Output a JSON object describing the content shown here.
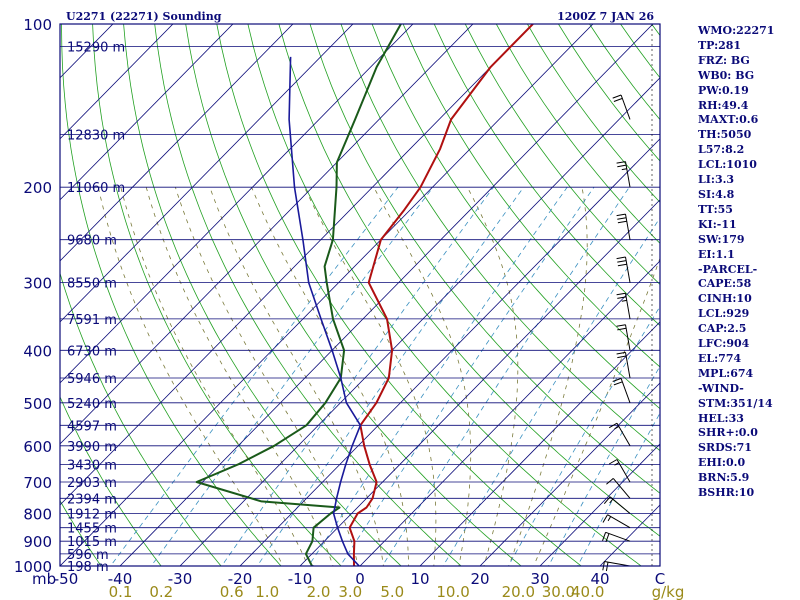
{
  "title_left": "U2271 (22271) Sounding",
  "title_right": "1200Z  7 JAN 26",
  "colors": {
    "frame": "#0a0a78",
    "isobar": "#0a0a78",
    "isotherm": "#0a0a78",
    "dry_adiabat": "#22a022",
    "moist_adiabat": "#7a7a3a",
    "mixing_ratio": "#3a90c0",
    "temperature": "#b01010",
    "dewpoint": "#1a5a1a",
    "parcel": "#1a1a9a",
    "mixing_label": "#9a8a1a"
  },
  "indices": [
    "WMO:22271",
    "TP:281",
    "FRZ: BG",
    "WB0: BG",
    "PW:0.19",
    "RH:49.4",
    "MAXT:0.6",
    "TH:5050",
    "L57:8.2",
    "LCL:1010",
    "LI:3.3",
    "SI:4.8",
    "TT:55",
    "KI:-11",
    "SW:179",
    "EI:1.1",
    "-PARCEL-",
    "CAPE:58",
    "CINH:10",
    "LCL:929",
    "CAP:2.5",
    "LFC:904",
    "EL:774",
    "MPL:674",
    "-WIND-",
    "STM:351/14",
    "HEL:33",
    "SHR+:0.0",
    "SRDS:71",
    "EHI:0.0",
    "BRN:5.9",
    "BSHR:10"
  ],
  "chart_data": {
    "type": "line",
    "diagram": "skew-t log-p",
    "title": "U2271 (22271) Sounding",
    "y_axis": {
      "unit": "mb",
      "scale": "log",
      "range": [
        1000,
        100
      ],
      "tick_labels": [
        "100",
        "200",
        "300",
        "400",
        "500",
        "600",
        "700",
        "800",
        "900",
        "1000"
      ]
    },
    "x_axis": {
      "unit": "C",
      "range": [
        -50,
        50
      ],
      "tick_labels": [
        "-50",
        "-40",
        "-30",
        "-20",
        "-10",
        "0",
        "10",
        "20",
        "30",
        "40",
        "C"
      ]
    },
    "mixing_ratio": {
      "unit": "g/kg",
      "labels": [
        "0.1",
        "0.2",
        "0.6",
        "1.0",
        "2.0",
        "3.0",
        "5.0",
        "10.0",
        "20.0",
        "30.0",
        "40.0"
      ]
    },
    "heights": [
      {
        "p": 110,
        "label": "15290 m"
      },
      {
        "p": 160,
        "label": "12830 m"
      },
      {
        "p": 200,
        "label": "11060 m"
      },
      {
        "p": 250,
        "label": "9680 m"
      },
      {
        "p": 300,
        "label": "8550 m"
      },
      {
        "p": 350,
        "label": "7591 m"
      },
      {
        "p": 400,
        "label": "6730 m"
      },
      {
        "p": 450,
        "label": "5946 m"
      },
      {
        "p": 500,
        "label": "5240 m"
      },
      {
        "p": 550,
        "label": "4597 m"
      },
      {
        "p": 600,
        "label": "3990 m"
      },
      {
        "p": 650,
        "label": "3430 m"
      },
      {
        "p": 700,
        "label": "2903 m"
      },
      {
        "p": 750,
        "label": "2394 m"
      },
      {
        "p": 800,
        "label": "1912 m"
      },
      {
        "p": 850,
        "label": "1455 m"
      },
      {
        "p": 900,
        "label": "1015 m"
      },
      {
        "p": 950,
        "label": "596 m"
      },
      {
        "p": 1000,
        "label": "198 m"
      }
    ],
    "series": [
      {
        "key": "temperature",
        "points": [
          [
            1010,
            0.6
          ],
          [
            1000,
            -1
          ],
          [
            950,
            -3
          ],
          [
            900,
            -5
          ],
          [
            850,
            -8
          ],
          [
            800,
            -9
          ],
          [
            780,
            -8.5
          ],
          [
            750,
            -9
          ],
          [
            700,
            -11
          ],
          [
            650,
            -15
          ],
          [
            600,
            -19
          ],
          [
            550,
            -23
          ],
          [
            500,
            -24
          ],
          [
            450,
            -26
          ],
          [
            400,
            -30
          ],
          [
            350,
            -36
          ],
          [
            300,
            -45
          ],
          [
            250,
            -50
          ],
          [
            220,
            -51
          ],
          [
            200,
            -52
          ],
          [
            170,
            -55
          ],
          [
            150,
            -58
          ],
          [
            120,
            -60
          ],
          [
            100,
            -60
          ]
        ]
      },
      {
        "key": "dewpoint",
        "points": [
          [
            1010,
            -6
          ],
          [
            1000,
            -8
          ],
          [
            950,
            -11
          ],
          [
            900,
            -12
          ],
          [
            850,
            -14
          ],
          [
            800,
            -13.5
          ],
          [
            780,
            -13
          ],
          [
            760,
            -27
          ],
          [
            700,
            -41
          ],
          [
            650,
            -37
          ],
          [
            600,
            -34
          ],
          [
            550,
            -32
          ],
          [
            500,
            -32.5
          ],
          [
            450,
            -34
          ],
          [
            400,
            -38
          ],
          [
            350,
            -45
          ],
          [
            300,
            -52
          ],
          [
            280,
            -55
          ],
          [
            250,
            -58
          ],
          [
            200,
            -66
          ],
          [
            180,
            -70
          ],
          [
            150,
            -74
          ],
          [
            120,
            -79
          ],
          [
            100,
            -82
          ]
        ]
      },
      {
        "key": "parcel",
        "points": [
          [
            1010,
            0.6
          ],
          [
            950,
            -4
          ],
          [
            900,
            -7
          ],
          [
            850,
            -10
          ],
          [
            800,
            -13
          ],
          [
            750,
            -15
          ],
          [
            700,
            -17
          ],
          [
            650,
            -19
          ],
          [
            600,
            -21
          ],
          [
            550,
            -23
          ],
          [
            500,
            -29
          ],
          [
            450,
            -34
          ],
          [
            400,
            -40
          ],
          [
            350,
            -47
          ],
          [
            300,
            -55
          ],
          [
            250,
            -63
          ],
          [
            200,
            -73
          ],
          [
            150,
            -85
          ],
          [
            115,
            -95
          ]
        ]
      }
    ],
    "wind_barbs": [
      {
        "p": 1000,
        "dir": 280,
        "spd": 20
      },
      {
        "p": 900,
        "dir": 290,
        "spd": 20
      },
      {
        "p": 850,
        "dir": 300,
        "spd": 15
      },
      {
        "p": 800,
        "dir": 310,
        "spd": 15
      },
      {
        "p": 750,
        "dir": 320,
        "spd": 10
      },
      {
        "p": 700,
        "dir": 330,
        "spd": 15
      },
      {
        "p": 600,
        "dir": 330,
        "spd": 15
      },
      {
        "p": 500,
        "dir": 340,
        "spd": 20
      },
      {
        "p": 450,
        "dir": 350,
        "spd": 20
      },
      {
        "p": 400,
        "dir": 350,
        "spd": 20
      },
      {
        "p": 350,
        "dir": 350,
        "spd": 25
      },
      {
        "p": 300,
        "dir": 350,
        "spd": 30
      },
      {
        "p": 250,
        "dir": 350,
        "spd": 30
      },
      {
        "p": 200,
        "dir": 350,
        "spd": 25
      },
      {
        "p": 150,
        "dir": 340,
        "spd": 20
      }
    ]
  }
}
